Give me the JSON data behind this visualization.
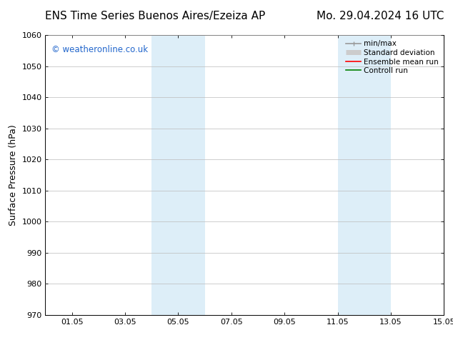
{
  "title_left": "ENS Time Series Buenos Aires/Ezeiza AP",
  "title_right": "Mo. 29.04.2024 16 UTC",
  "ylabel": "Surface Pressure (hPa)",
  "ylim": [
    970,
    1060
  ],
  "yticks": [
    970,
    980,
    990,
    1000,
    1010,
    1020,
    1030,
    1040,
    1050,
    1060
  ],
  "xlim_start": -0.5,
  "xlim_end": 14.5,
  "xtick_positions": [
    0.5,
    2.5,
    4.5,
    6.5,
    8.5,
    10.5,
    12.5,
    14.5
  ],
  "xtick_labels": [
    "01.05",
    "03.05",
    "05.05",
    "07.05",
    "09.05",
    "11.05",
    "13.05",
    "15.05"
  ],
  "shaded_bands": [
    {
      "xmin": 3.5,
      "xmax": 5.5
    },
    {
      "xmin": 10.5,
      "xmax": 12.5
    }
  ],
  "band_color": "#ddeef8",
  "watermark": "© weatheronline.co.uk",
  "watermark_color": "#2266cc",
  "legend_items": [
    {
      "label": "min/max",
      "color": "#999999",
      "lw": 1.2
    },
    {
      "label": "Standard deviation",
      "color": "#cccccc",
      "lw": 5
    },
    {
      "label": "Ensemble mean run",
      "color": "#ff0000",
      "lw": 1.2
    },
    {
      "label": "Controll run",
      "color": "#008000",
      "lw": 1.2
    }
  ],
  "bg_color": "#ffffff",
  "grid_color": "#bbbbbb",
  "title_fontsize": 11,
  "tick_fontsize": 8,
  "ylabel_fontsize": 9,
  "legend_fontsize": 7.5
}
